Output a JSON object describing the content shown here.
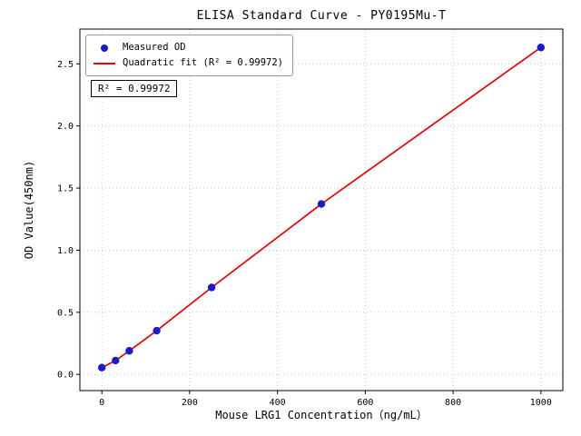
{
  "chart_data": {
    "type": "scatter",
    "title": "ELISA Standard Curve - PY0195Mu-T",
    "xlabel": "Mouse LRG1 Concentration（ng/mL）",
    "ylabel": "OD Value(450nm)",
    "points": {
      "x": [
        0,
        31.25,
        62.5,
        125,
        250,
        500,
        1000
      ],
      "y": [
        0.055,
        0.112,
        0.19,
        0.352,
        0.7,
        1.372,
        2.632
      ]
    },
    "fit": {
      "type": "quadratic",
      "r_squared": 0.99972
    },
    "legend": [
      {
        "label": "Measured OD",
        "marker": "dot",
        "color": "#1a1acd"
      },
      {
        "label": "Quadratic fit (R² = 0.99972)",
        "marker": "line",
        "color": "#ee0000"
      }
    ],
    "legend_position": "upper left",
    "annotation": "R² = 0.99972",
    "xticks": [
      0,
      200,
      400,
      600,
      800,
      1000
    ],
    "yticks": [
      0.0,
      0.5,
      1.0,
      1.5,
      2.0,
      2.5
    ],
    "xlim": [
      -50,
      1050
    ],
    "ylim": [
      -0.13,
      2.78
    ],
    "grid": true,
    "colors": {
      "points": "#1a1acd",
      "fit": "#ee0000",
      "grid": "#bbbbbb",
      "axis": "#000000"
    }
  }
}
